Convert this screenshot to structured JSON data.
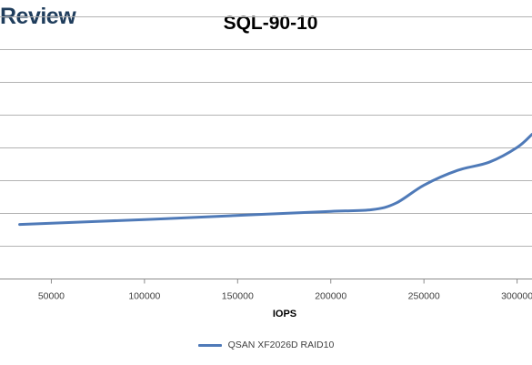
{
  "brand": {
    "text": "Review"
  },
  "chart_data": {
    "type": "line",
    "title": "SQL-90-10",
    "xlabel": "IOPS",
    "ylabel": "",
    "xlim": [
      0,
      308000
    ],
    "x_ticks": [
      50000,
      100000,
      150000,
      200000,
      250000,
      300000
    ],
    "x_tick_labels": [
      "50000",
      "100000",
      "150000",
      "200000",
      "250000",
      "300000"
    ],
    "ylim": [
      0,
      8
    ],
    "y_gridlines": [
      1,
      2,
      3,
      4,
      5,
      6,
      7,
      8
    ],
    "grid": "horizontal",
    "legend_position": "bottom",
    "series": [
      {
        "name": "QSAN XF2026D RAID10",
        "color": "#4f7ab8",
        "x": [
          33000,
          100000,
          160000,
          200000,
          222000,
          235000,
          250000,
          268000,
          285000,
          300000,
          308000
        ],
        "y": [
          1.65,
          1.8,
          1.95,
          2.05,
          2.1,
          2.3,
          2.85,
          3.3,
          3.55,
          4.0,
          4.4
        ]
      }
    ]
  }
}
